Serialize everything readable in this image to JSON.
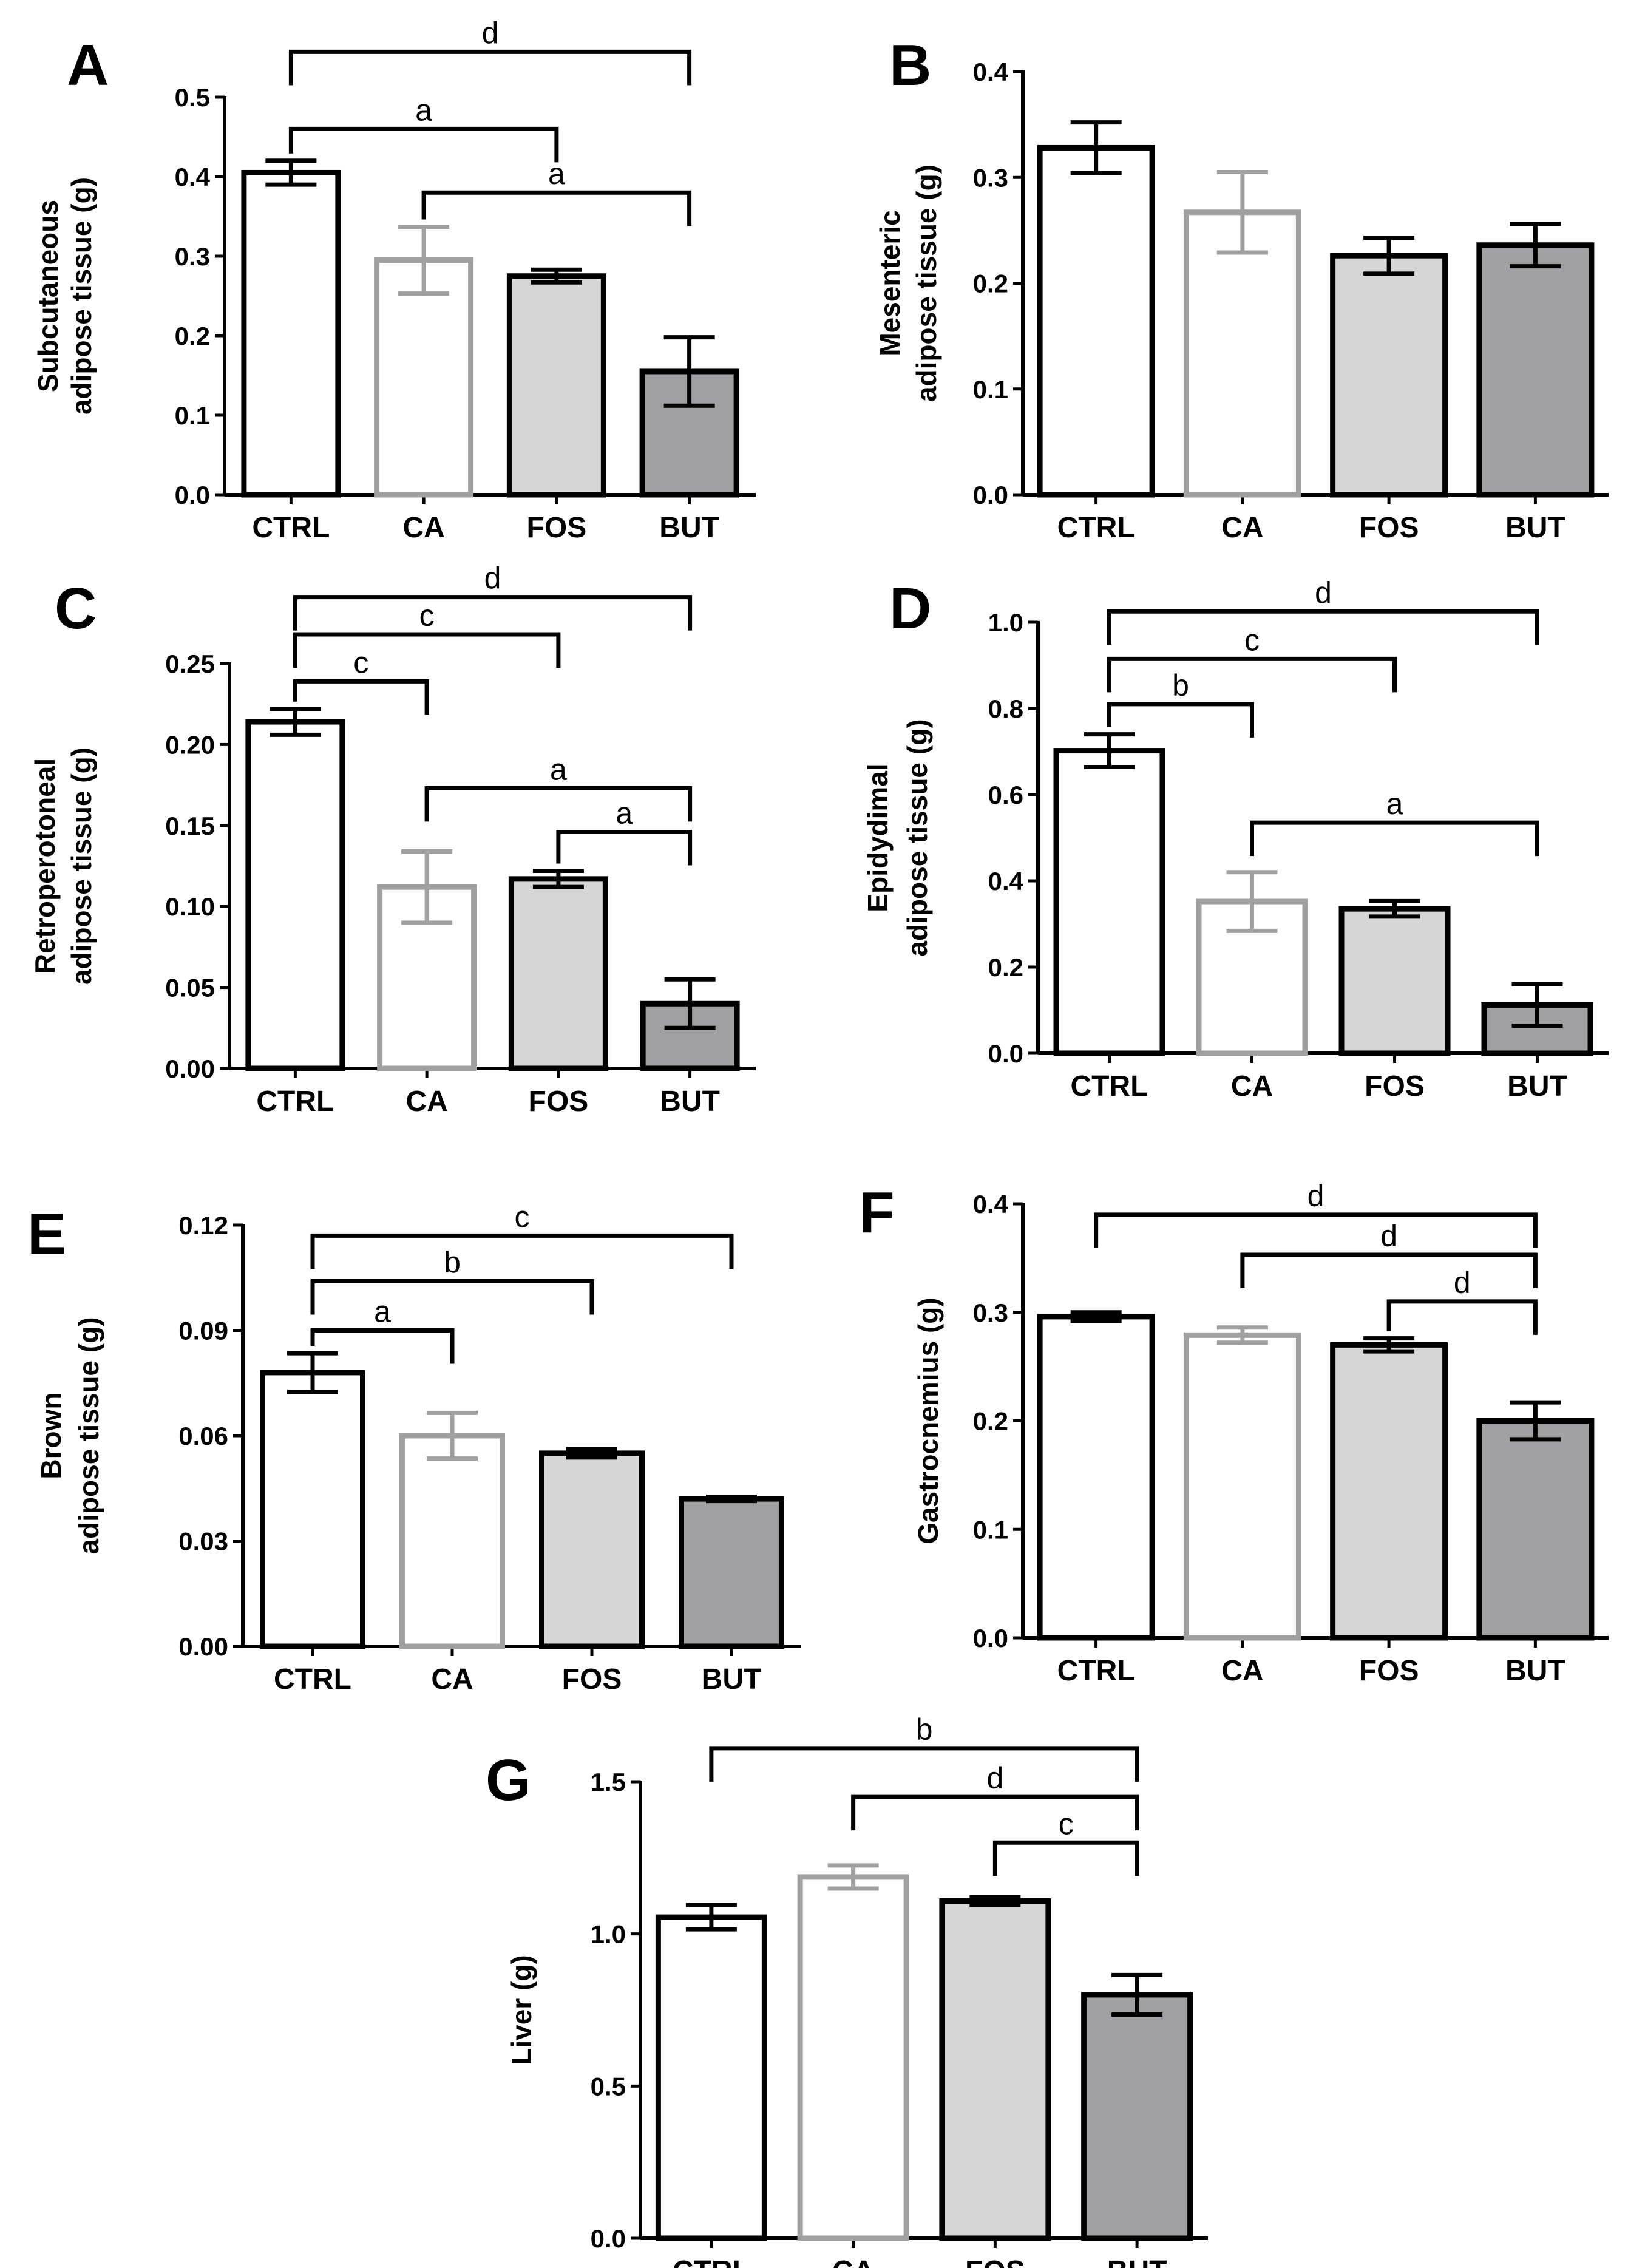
{
  "figure": {
    "groups": [
      "CTRL",
      "CA",
      "FOS",
      "BUT"
    ],
    "colors": {
      "CTRL": {
        "fill": "#ffffff",
        "stroke": "#000000",
        "err": "#000000"
      },
      "CA": {
        "fill": "#ffffff",
        "stroke": "#a0a0a0",
        "err": "#a0a0a0"
      },
      "FOS": {
        "fill": "#d6d6d6",
        "stroke": "#000000",
        "err": "#000000"
      },
      "BUT": {
        "fill": "#a0a0a3",
        "stroke": "#000000",
        "err": "#000000"
      }
    }
  },
  "chart_data": [
    {
      "type": "bar",
      "panel": "A",
      "ylabel_lines": [
        "Subcutaneous",
        "adipose tissue (g)"
      ],
      "categories": [
        "CTRL",
        "CA",
        "FOS",
        "BUT"
      ],
      "values": [
        0.405,
        0.295,
        0.275,
        0.155
      ],
      "errors": [
        0.015,
        0.042,
        0.008,
        0.043
      ],
      "ylim": [
        0,
        0.5
      ],
      "yticks": [
        "0.0",
        "0.1",
        "0.2",
        "0.3",
        "0.4",
        "0.5"
      ],
      "significance": [
        {
          "from": 0,
          "to": 3,
          "level": 0.557,
          "label": "d",
          "pos": "above"
        },
        {
          "from": 0,
          "to": 2,
          "level": 0.46,
          "label": "a",
          "pos": "above"
        },
        {
          "from": 1,
          "to": 3,
          "level": 0.38,
          "label": "a",
          "pos": "above"
        }
      ]
    },
    {
      "type": "bar",
      "panel": "B",
      "ylabel_lines": [
        "Mesenteric",
        "adipose tissue (g)"
      ],
      "categories": [
        "CTRL",
        "CA",
        "FOS",
        "BUT"
      ],
      "values": [
        0.328,
        0.267,
        0.226,
        0.236
      ],
      "errors": [
        0.024,
        0.038,
        0.017,
        0.02
      ],
      "ylim": [
        0,
        0.4
      ],
      "yticks": [
        "0.0",
        "0.1",
        "0.2",
        "0.3",
        "0.4"
      ],
      "significance": []
    },
    {
      "type": "bar",
      "panel": "C",
      "ylabel_lines": [
        "Retroperotoneal",
        "adipose tissue (g)"
      ],
      "categories": [
        "CTRL",
        "CA",
        "FOS",
        "BUT"
      ],
      "values": [
        0.214,
        0.112,
        0.117,
        0.04
      ],
      "errors": [
        0.008,
        0.022,
        0.005,
        0.015
      ],
      "ylim": [
        0,
        0.25
      ],
      "yticks": [
        "0.00",
        "0.05",
        "0.10",
        "0.15",
        "0.20",
        "0.25"
      ],
      "significance": [
        {
          "from": 0,
          "to": 3,
          "level": 0.291,
          "label": "d",
          "pos": "above"
        },
        {
          "from": 0,
          "to": 2,
          "level": 0.268,
          "label": "c",
          "pos": "above"
        },
        {
          "from": 0,
          "to": 1,
          "level": 0.239,
          "label": "c",
          "pos": "above"
        },
        {
          "from": 1,
          "to": 3,
          "level": 0.173,
          "label": "a",
          "pos": "above"
        },
        {
          "from": 2,
          "to": 3,
          "level": 0.146,
          "label": "a",
          "pos": "above"
        }
      ]
    },
    {
      "type": "bar",
      "panel": "D",
      "ylabel_lines": [
        "Epidydimal",
        "adipose tissue (g)"
      ],
      "categories": [
        "CTRL",
        "CA",
        "FOS",
        "BUT"
      ],
      "values": [
        0.702,
        0.352,
        0.335,
        0.112
      ],
      "errors": [
        0.038,
        0.068,
        0.018,
        0.048
      ],
      "ylim": [
        0,
        1.0
      ],
      "yticks": [
        "0.0",
        "0.2",
        "0.4",
        "0.6",
        "0.8",
        "1.0"
      ],
      "significance": [
        {
          "from": 0,
          "to": 3,
          "level": 1.025,
          "label": "d",
          "pos": "above"
        },
        {
          "from": 0,
          "to": 2,
          "level": 0.915,
          "label": "c",
          "pos": "above"
        },
        {
          "from": 0,
          "to": 1,
          "level": 0.81,
          "label": "b",
          "pos": "above"
        },
        {
          "from": 1,
          "to": 3,
          "level": 0.535,
          "label": "a",
          "pos": "above"
        }
      ]
    },
    {
      "type": "bar",
      "panel": "E",
      "ylabel_lines": [
        "Brown",
        "adipose tissue (g)"
      ],
      "categories": [
        "CTRL",
        "CA",
        "FOS",
        "BUT"
      ],
      "values": [
        0.078,
        0.06,
        0.055,
        0.042
      ],
      "errors": [
        0.0055,
        0.0065,
        0.0012,
        0.0006
      ],
      "ylim": [
        0,
        0.12
      ],
      "yticks": [
        "0.00",
        "0.03",
        "0.06",
        "0.09",
        "0.12"
      ],
      "significance": [
        {
          "from": 0,
          "to": 3,
          "level": 0.117,
          "label": "c",
          "pos": "above"
        },
        {
          "from": 0,
          "to": 2,
          "level": 0.104,
          "label": "b",
          "pos": "above"
        },
        {
          "from": 0,
          "to": 1,
          "level": 0.09,
          "label": "a",
          "pos": "above"
        }
      ]
    },
    {
      "type": "bar",
      "panel": "F",
      "ylabel_lines": [
        "Gastrocnemius (g)"
      ],
      "categories": [
        "CTRL",
        "CA",
        "FOS",
        "BUT"
      ],
      "values": [
        0.296,
        0.279,
        0.27,
        0.2
      ],
      "errors": [
        0.004,
        0.007,
        0.006,
        0.017
      ],
      "ylim": [
        0,
        0.4
      ],
      "yticks": [
        "0.0",
        "0.1",
        "0.2",
        "0.3",
        "0.4"
      ],
      "significance": [
        {
          "from": 0,
          "to": 3,
          "level": 0.39,
          "label": "d",
          "pos": "above"
        },
        {
          "from": 1,
          "to": 3,
          "level": 0.353,
          "label": "d",
          "pos": "below"
        },
        {
          "from": 2,
          "to": 3,
          "level": 0.31,
          "label": "d",
          "pos": "above"
        }
      ]
    },
    {
      "type": "bar",
      "panel": "G",
      "ylabel_lines": [
        "Liver (g)"
      ],
      "categories": [
        "CTRL",
        "CA",
        "FOS",
        "BUT"
      ],
      "values": [
        1.055,
        1.187,
        1.108,
        0.8
      ],
      "errors": [
        0.04,
        0.038,
        0.012,
        0.065
      ],
      "ylim": [
        0,
        1.5
      ],
      "yticks": [
        "0.0",
        "0.5",
        "1.0",
        "1.5"
      ],
      "significance": [
        {
          "from": 0,
          "to": 3,
          "level": 1.61,
          "label": "b",
          "pos": "above"
        },
        {
          "from": 1,
          "to": 3,
          "level": 1.45,
          "label": "d",
          "pos": "above"
        },
        {
          "from": 2,
          "to": 3,
          "level": 1.3,
          "label": "c",
          "pos": "above"
        }
      ]
    }
  ]
}
